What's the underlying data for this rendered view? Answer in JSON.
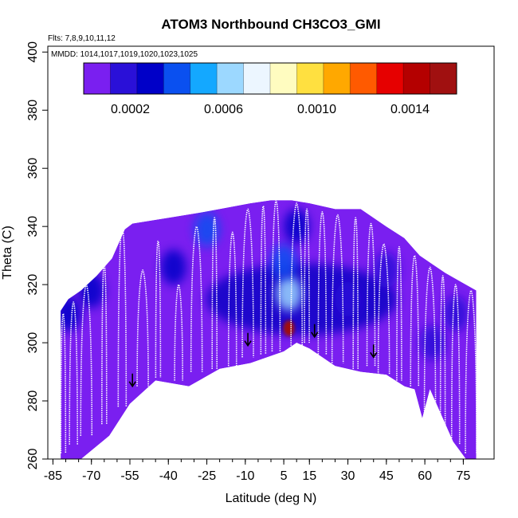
{
  "chart_data": {
    "type": "heatmap",
    "title": "ATOM3 Northbound CH3CO3_GMI",
    "xlabel": "Latitude (deg N)",
    "ylabel": "Theta (C)",
    "xlim": [
      -87,
      87
    ],
    "ylim": [
      260,
      402
    ],
    "x_ticks": [
      -85,
      -70,
      -55,
      -40,
      -25,
      -10,
      5,
      15,
      30,
      45,
      60,
      75
    ],
    "x_tick_labels": [
      "-85",
      "-70",
      "-55",
      "-40",
      "-25",
      "-10",
      "5",
      "15",
      "30",
      "45",
      "60",
      "75"
    ],
    "y_ticks": [
      260,
      280,
      300,
      320,
      340,
      360,
      380,
      400
    ],
    "y_tick_labels": [
      "260",
      "280",
      "300",
      "320",
      "340",
      "360",
      "380",
      "400"
    ],
    "annotations": {
      "flights": "Flts: 7,8,9,10,11,12",
      "dates": "MMDD: 1014,1017,1019,1020,1023,1025"
    },
    "colorbar": {
      "range": [
        0,
        0.0016
      ],
      "tick_values": [
        0.0002,
        0.0006,
        0.001,
        0.0014
      ],
      "tick_labels": [
        "0.0002",
        "0.0006",
        "0.0010",
        "0.0014"
      ],
      "colors": [
        "#7a1ff0",
        "#2a10d8",
        "#0000c8",
        "#0a50f0",
        "#14a8ff",
        "#9cd8ff",
        "#ecf6ff",
        "#fffcc0",
        "#ffe040",
        "#ffa800",
        "#ff5a00",
        "#e60000",
        "#b40000",
        "#a01010"
      ]
    },
    "top_envelope": [
      [
        -82,
        311
      ],
      [
        -79,
        315
      ],
      [
        -74,
        318
      ],
      [
        -68,
        323
      ],
      [
        -62,
        329
      ],
      [
        -57,
        339
      ],
      [
        -54,
        341
      ],
      [
        -40,
        343
      ],
      [
        -26,
        345
      ],
      [
        -20,
        346
      ],
      [
        -8,
        348
      ],
      [
        0,
        349
      ],
      [
        8,
        349
      ],
      [
        15,
        348
      ],
      [
        25,
        346
      ],
      [
        35,
        346
      ],
      [
        45,
        340
      ],
      [
        52,
        336
      ],
      [
        58,
        330
      ],
      [
        63,
        327
      ],
      [
        68,
        324
      ],
      [
        74,
        321
      ],
      [
        80,
        318
      ]
    ],
    "bottom_envelope": [
      [
        -82,
        260
      ],
      [
        -74,
        260
      ],
      [
        -63,
        268
      ],
      [
        -55,
        279
      ],
      [
        -45,
        287
      ],
      [
        -32,
        285
      ],
      [
        -20,
        291
      ],
      [
        -8,
        293
      ],
      [
        5,
        297
      ],
      [
        10,
        300
      ],
      [
        15,
        298
      ],
      [
        25,
        292
      ],
      [
        35,
        290
      ],
      [
        45,
        289
      ],
      [
        52,
        285
      ],
      [
        56,
        284
      ],
      [
        59,
        274
      ],
      [
        62,
        284
      ],
      [
        66,
        276
      ],
      [
        71,
        266
      ],
      [
        76,
        260
      ],
      [
        80,
        260
      ]
    ],
    "hotspots": [
      {
        "lat": 7,
        "theta": 305,
        "value": 0.0016
      },
      {
        "lat": 7,
        "theta": 317,
        "value": 0.0006
      },
      {
        "lat": 5,
        "theta": 328,
        "value": 0.00045
      },
      {
        "lat": 10,
        "theta": 340,
        "value": 0.0003
      },
      {
        "lat": -25,
        "theta": 339,
        "value": 0.0004
      },
      {
        "lat": -38,
        "theta": 326,
        "value": 0.0003
      },
      {
        "lat": -70,
        "theta": 318,
        "value": 0.00028
      },
      {
        "lat": -79,
        "theta": 310,
        "value": 0.00028
      },
      {
        "lat": 30,
        "theta": 315,
        "value": 0.00015
      },
      {
        "lat": 45,
        "theta": 325,
        "value": 0.00012
      },
      {
        "lat": 63,
        "theta": 300,
        "value": 0.0002
      },
      {
        "lat": 72,
        "theta": 310,
        "value": 0.00022
      }
    ],
    "baseline_value": 8e-05,
    "arrows": [
      {
        "lat": -54,
        "theta": 285
      },
      {
        "lat": -9,
        "theta": 299
      },
      {
        "lat": 17,
        "theta": 302
      },
      {
        "lat": 40,
        "theta": 295
      }
    ],
    "profiles": [
      {
        "lat": -81,
        "top": 310,
        "bottom": 262
      },
      {
        "lat": -77,
        "top": 314,
        "bottom": 265
      },
      {
        "lat": -72,
        "top": 320,
        "bottom": 268
      },
      {
        "lat": -65,
        "top": 327,
        "bottom": 272
      },
      {
        "lat": -58,
        "top": 340,
        "bottom": 278
      },
      {
        "lat": -50,
        "top": 325,
        "bottom": 285
      },
      {
        "lat": -44,
        "top": 335,
        "bottom": 288
      },
      {
        "lat": -36,
        "top": 320,
        "bottom": 287
      },
      {
        "lat": -29,
        "top": 340,
        "bottom": 290
      },
      {
        "lat": -22,
        "top": 343,
        "bottom": 291
      },
      {
        "lat": -15,
        "top": 338,
        "bottom": 292
      },
      {
        "lat": -9,
        "top": 346,
        "bottom": 295
      },
      {
        "lat": -3,
        "top": 347,
        "bottom": 296
      },
      {
        "lat": 2,
        "top": 349,
        "bottom": 297
      },
      {
        "lat": 10,
        "top": 348,
        "bottom": 299
      },
      {
        "lat": 14,
        "top": 346,
        "bottom": 300
      },
      {
        "lat": 20,
        "top": 345,
        "bottom": 296
      },
      {
        "lat": 26,
        "top": 344,
        "bottom": 293
      },
      {
        "lat": 33,
        "top": 343,
        "bottom": 291
      },
      {
        "lat": 39,
        "top": 341,
        "bottom": 292
      },
      {
        "lat": 44,
        "top": 334,
        "bottom": 289
      },
      {
        "lat": 50,
        "top": 333,
        "bottom": 287
      },
      {
        "lat": 56,
        "top": 330,
        "bottom": 285
      },
      {
        "lat": 62,
        "top": 326,
        "bottom": 275
      },
      {
        "lat": 67,
        "top": 323,
        "bottom": 271
      },
      {
        "lat": 72,
        "top": 320,
        "bottom": 265
      },
      {
        "lat": 78,
        "top": 318,
        "bottom": 262
      }
    ]
  }
}
